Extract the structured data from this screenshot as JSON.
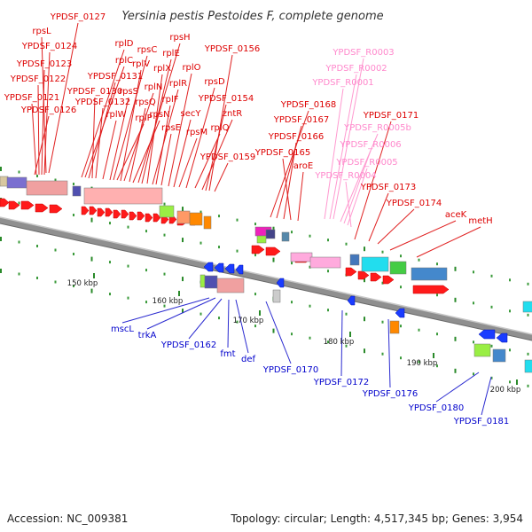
{
  "title": "Yersinia pestis Pestoides F, complete genome",
  "footer": {
    "accession": "Accession: NC_009381",
    "summary": "Topology: circular; Length: 4,517,345 bp; Genes: 3,954"
  },
  "colors": {
    "forward_label": "#dd0000",
    "rna_label": "#ff88cc",
    "reverse_label": "#0000cc",
    "backbone": "#888888"
  },
  "scale_ticks": [
    "150 kbp",
    "160 kbp",
    "170 kbp",
    "180 kbp",
    "190 kbp",
    "200 kbp"
  ],
  "forward_labels": [
    "YPDSF_0127",
    "rpsL",
    "YPDSF_0124",
    "YPDSF_0123",
    "YPDSF_0122",
    "YPDSF_0121",
    "YPDSF_0126",
    "rplD",
    "rplC",
    "YPDSF_0131",
    "YPDSF_0130",
    "YPDSF_0132",
    "rplW",
    "rpsS",
    "rplP",
    "rpsC",
    "rplV",
    "rplN",
    "rpsQ",
    "rpsN",
    "rpsH",
    "rplE",
    "rplX",
    "rplR",
    "rplF",
    "rpsE",
    "rplO",
    "secY",
    "rpsM",
    "rpsD",
    "rplQ",
    "zntR",
    "YPDSF_0156",
    "YPDSF_0154",
    "YPDSF_0159",
    "YPDSF_0168",
    "YPDSF_0167",
    "YPDSF_0166",
    "YPDSF_0165",
    "aroE",
    "YPDSF_0171",
    "YPDSF_0173",
    "YPDSF_0174",
    "aceK",
    "metH"
  ],
  "rna_labels": [
    "YPDSF_R0003",
    "YPDSF_R0002",
    "YPDSF_R0001",
    "YPDSF_R0005b",
    "YPDSF_R0006",
    "YPDSF_R0005",
    "YPDSF_R0004"
  ],
  "reverse_labels": [
    "mscL",
    "trkA",
    "YPDSF_0162",
    "fmt",
    "def",
    "YPDSF_0170",
    "YPDSF_0172",
    "YPDSF_0176",
    "YPDSF_0180",
    "YPDSF_0181"
  ]
}
